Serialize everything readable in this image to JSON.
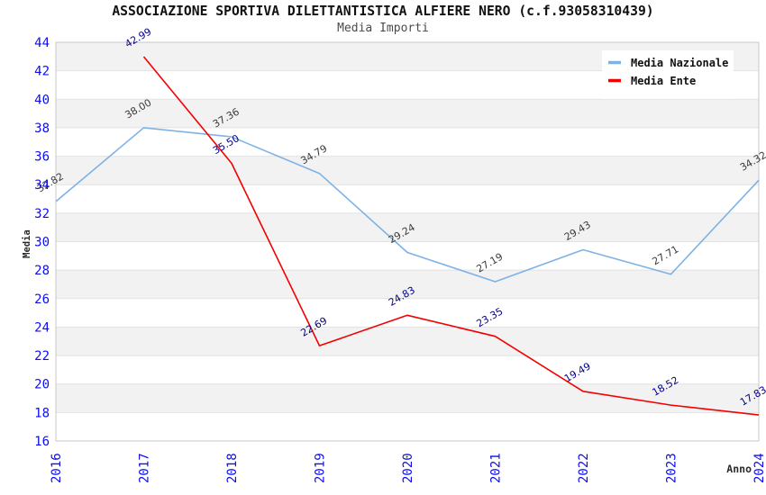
{
  "chart_data": {
    "type": "line",
    "title": "ASSOCIAZIONE SPORTIVA DILETTANTISTICA ALFIERE NERO (c.f.93058310439)",
    "subtitle": "Media Importi",
    "xlabel": "Anno",
    "ylabel": "Media",
    "x": [
      "2016",
      "2017",
      "2018",
      "2019",
      "2020",
      "2021",
      "2022",
      "2023",
      "2024"
    ],
    "ylim": [
      16,
      44
    ],
    "ytick_step": 2,
    "grid": "horizontal-bands-alternating",
    "legend_position": "top-right",
    "series": [
      {
        "name": "Media Nazionale",
        "color": "#7eb2e5",
        "label_color": "#3a3a3a",
        "values": [
          32.82,
          38.0,
          37.36,
          34.79,
          29.24,
          27.19,
          29.43,
          27.71,
          34.32
        ]
      },
      {
        "name": "Media Ente",
        "color": "#f40000",
        "label_color": "#00008b",
        "values": [
          null,
          42.99,
          35.5,
          22.69,
          24.83,
          23.35,
          19.49,
          18.52,
          17.83
        ]
      }
    ],
    "colors": {
      "background": "#ffffff",
      "band": "#f2f2f2",
      "gridline": "#e2e2e2",
      "plot_border": "#c8c8c8",
      "axis_tick": "#0d0dee",
      "title": "#111111",
      "subtitle": "#4a4a4a",
      "axis_label": "#2a2a2a",
      "legend_text": "#111111",
      "legend_box": "#ffffff"
    }
  }
}
